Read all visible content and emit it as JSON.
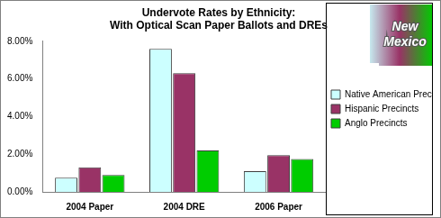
{
  "chart_data": {
    "type": "bar",
    "title": [
      "Undervote Rates by Ethnicity:",
      "With Optical Scan Paper Ballots and DREs"
    ],
    "annotations": [
      "New Mexico"
    ],
    "categories": [
      "2004 Paper",
      "2004 DRE",
      "2006 Paper"
    ],
    "series": [
      {
        "name": "Native American Precincts",
        "color": "#ccffff",
        "values": [
          0.75,
          7.6,
          1.1
        ]
      },
      {
        "name": "Hispanic Precincts",
        "color": "#993366",
        "values": [
          1.3,
          6.3,
          1.95
        ]
      },
      {
        "name": "Anglo Precincts",
        "color": "#00cc00",
        "values": [
          0.9,
          2.2,
          1.75
        ]
      }
    ],
    "ylim": [
      0,
      8
    ],
    "yticks": [
      {
        "value": 0,
        "label": "0.00%"
      },
      {
        "value": 2,
        "label": "2.00%"
      },
      {
        "value": 4,
        "label": "4.00%"
      },
      {
        "value": 6,
        "label": "6.00%"
      },
      {
        "value": 8,
        "label": "8.00%"
      }
    ],
    "grid": false,
    "legend": "right"
  }
}
